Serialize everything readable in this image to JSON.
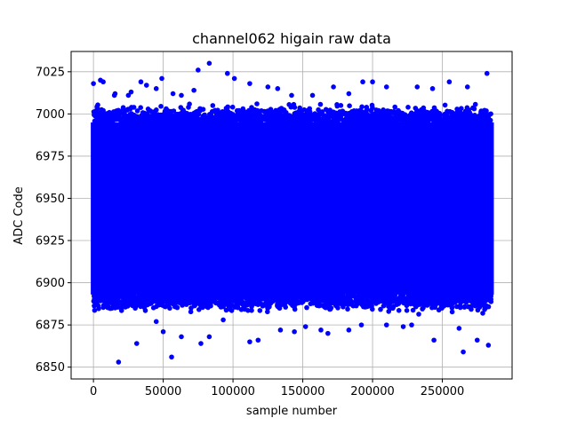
{
  "chart_data": {
    "type": "scatter",
    "title": "channel062 higain raw data",
    "xlabel": "sample number",
    "ylabel": "ADC Code",
    "xlim": [
      -16000,
      300000
    ],
    "ylim": [
      6843,
      7037
    ],
    "x_ticks": [
      0,
      50000,
      100000,
      150000,
      200000,
      250000
    ],
    "x_tick_labels": [
      "0",
      "50000",
      "100000",
      "150000",
      "200000",
      "250000"
    ],
    "y_ticks": [
      6850,
      6875,
      6900,
      6925,
      6950,
      6975,
      7000,
      7025
    ],
    "y_tick_labels": [
      "6850",
      "6875",
      "6900",
      "6925",
      "6950",
      "6975",
      "7000",
      "7025"
    ],
    "grid": true,
    "marker_color": "#0000ff",
    "series": [
      {
        "x_range": [
          0,
          285000
        ],
        "dense_band": [
          6893,
          6995
        ],
        "outliers": [
          {
            "x": 0,
            "y": 7018
          },
          {
            "x": 5000,
            "y": 7020
          },
          {
            "x": 7000,
            "y": 7019
          },
          {
            "x": 15000,
            "y": 7011
          },
          {
            "x": 15500,
            "y": 7012
          },
          {
            "x": 25000,
            "y": 7011
          },
          {
            "x": 27000,
            "y": 7013
          },
          {
            "x": 34000,
            "y": 7019
          },
          {
            "x": 38000,
            "y": 7017
          },
          {
            "x": 45000,
            "y": 7015
          },
          {
            "x": 49000,
            "y": 7021
          },
          {
            "x": 57000,
            "y": 7012
          },
          {
            "x": 63000,
            "y": 7011
          },
          {
            "x": 72000,
            "y": 7014
          },
          {
            "x": 75000,
            "y": 7026
          },
          {
            "x": 83000,
            "y": 7030
          },
          {
            "x": 96000,
            "y": 7024
          },
          {
            "x": 101000,
            "y": 7021
          },
          {
            "x": 112000,
            "y": 7018
          },
          {
            "x": 125000,
            "y": 7016
          },
          {
            "x": 132000,
            "y": 7015
          },
          {
            "x": 142000,
            "y": 7011
          },
          {
            "x": 157000,
            "y": 7011
          },
          {
            "x": 172000,
            "y": 7016
          },
          {
            "x": 183000,
            "y": 7012
          },
          {
            "x": 193000,
            "y": 7019
          },
          {
            "x": 200000,
            "y": 7019
          },
          {
            "x": 210000,
            "y": 7016
          },
          {
            "x": 232000,
            "y": 7016
          },
          {
            "x": 243000,
            "y": 7015
          },
          {
            "x": 255000,
            "y": 7019
          },
          {
            "x": 268000,
            "y": 7016
          },
          {
            "x": 282000,
            "y": 7024
          },
          {
            "x": 18000,
            "y": 6853
          },
          {
            "x": 31000,
            "y": 6864
          },
          {
            "x": 45000,
            "y": 6877
          },
          {
            "x": 50000,
            "y": 6871
          },
          {
            "x": 56000,
            "y": 6856
          },
          {
            "x": 63000,
            "y": 6868
          },
          {
            "x": 77000,
            "y": 6864
          },
          {
            "x": 83000,
            "y": 6868
          },
          {
            "x": 93000,
            "y": 6878
          },
          {
            "x": 112000,
            "y": 6865
          },
          {
            "x": 118000,
            "y": 6866
          },
          {
            "x": 134000,
            "y": 6872
          },
          {
            "x": 144000,
            "y": 6871
          },
          {
            "x": 152000,
            "y": 6874
          },
          {
            "x": 163000,
            "y": 6872
          },
          {
            "x": 168000,
            "y": 6870
          },
          {
            "x": 183000,
            "y": 6872
          },
          {
            "x": 192000,
            "y": 6875
          },
          {
            "x": 210000,
            "y": 6875
          },
          {
            "x": 222000,
            "y": 6874
          },
          {
            "x": 228000,
            "y": 6875
          },
          {
            "x": 244000,
            "y": 6866
          },
          {
            "x": 262000,
            "y": 6873
          },
          {
            "x": 265000,
            "y": 6859
          },
          {
            "x": 275000,
            "y": 6866
          },
          {
            "x": 283000,
            "y": 6863
          }
        ]
      }
    ]
  }
}
